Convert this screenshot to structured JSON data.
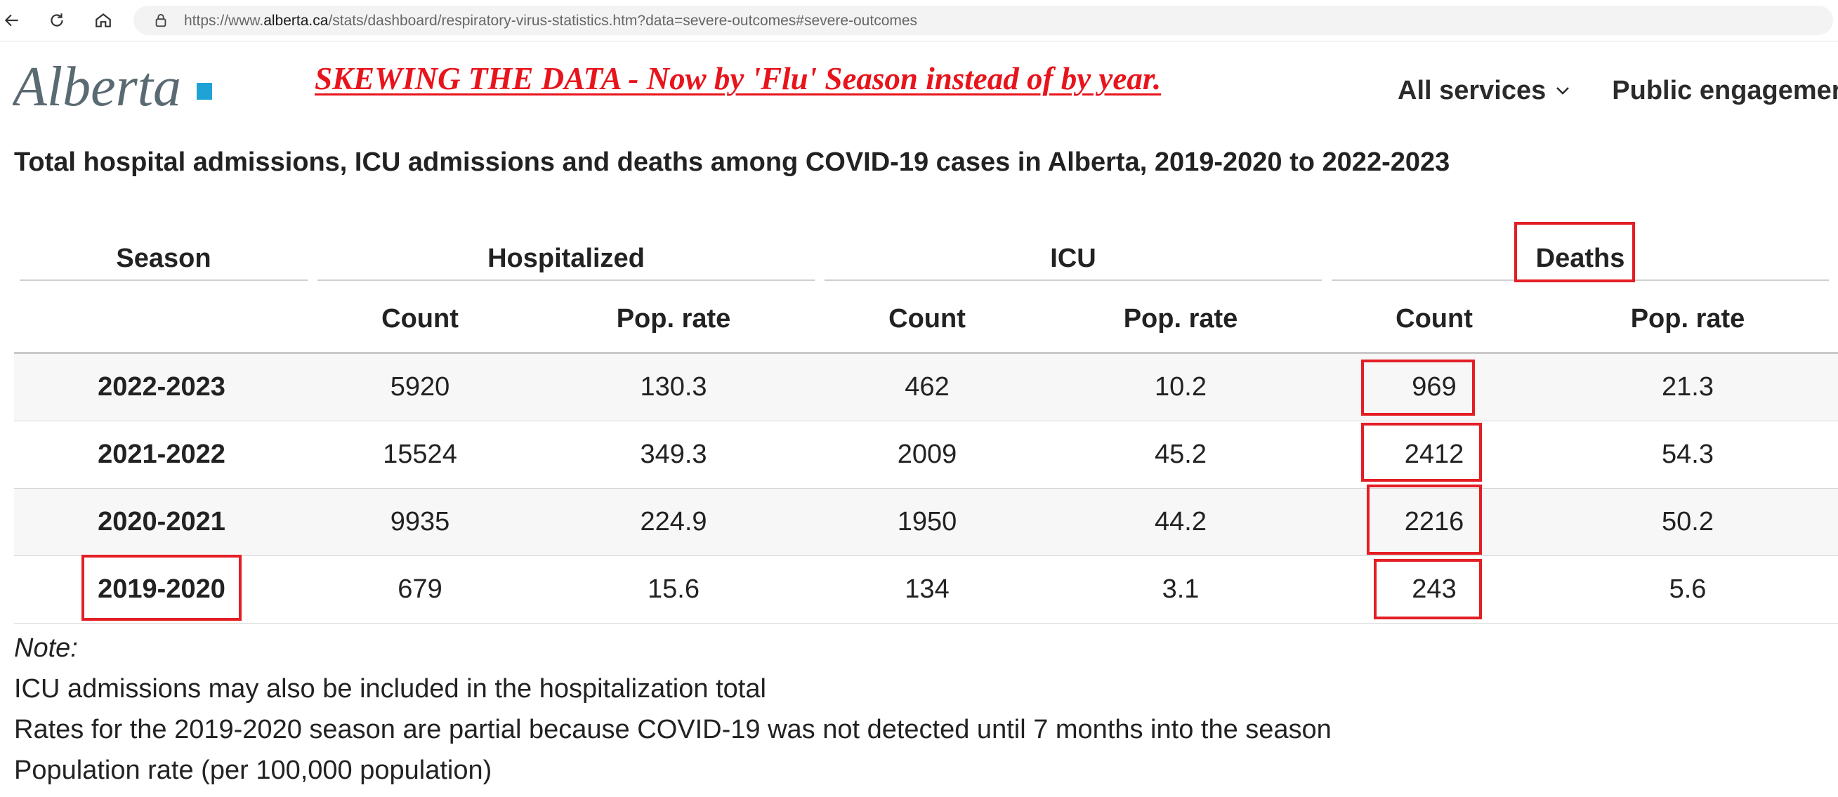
{
  "browser": {
    "url_prefix": "https://www.",
    "url_host": "alberta.ca",
    "url_path": "/stats/dashboard/respiratory-virus-statistics.htm?data=severe-outcomes#severe-outcomes"
  },
  "header": {
    "logo_text": "Alberta",
    "annotation": "SKEWING THE DATA - Now by 'Flu' Season instead of by year.",
    "nav": [
      {
        "label": "All services"
      },
      {
        "label": "Public engagemer"
      }
    ]
  },
  "colors": {
    "annotation_red": "#e31e24",
    "logo_teal": "#1fa3d6",
    "row_shade": "#f7f7f7"
  },
  "table": {
    "title": "Total hospital admissions, ICU admissions and deaths among COVID-19 cases in Alberta, 2019-2020 to 2022-2023",
    "group_headers": {
      "season": "Season",
      "hospitalized": "Hospitalized",
      "icu": "ICU",
      "deaths": "Deaths"
    },
    "sub_headers": [
      "Count",
      "Pop. rate",
      "Count",
      "Pop. rate",
      "Count",
      "Pop. rate"
    ],
    "rows": [
      {
        "season": "2022-2023",
        "hosp_count": "5920",
        "hosp_rate": "130.3",
        "icu_count": "462",
        "icu_rate": "10.2",
        "death_count": "969",
        "death_rate": "21.3"
      },
      {
        "season": "2021-2022",
        "hosp_count": "15524",
        "hosp_rate": "349.3",
        "icu_count": "2009",
        "icu_rate": "45.2",
        "death_count": "2412",
        "death_rate": "54.3"
      },
      {
        "season": "2020-2021",
        "hosp_count": "9935",
        "hosp_rate": "224.9",
        "icu_count": "1950",
        "icu_rate": "44.2",
        "death_count": "2216",
        "death_rate": "50.2"
      },
      {
        "season": "2019-2020",
        "hosp_count": "679",
        "hosp_rate": "15.6",
        "icu_count": "134",
        "icu_rate": "3.1",
        "death_count": "243",
        "death_rate": "5.6"
      }
    ]
  },
  "notes": {
    "label": "Note:",
    "lines": [
      "ICU admissions may also be included in the hospitalization total",
      "Rates for the 2019-2020 season are partial because COVID-19 was not detected until 7 months into the season",
      "Population rate (per 100,000 population)"
    ]
  }
}
